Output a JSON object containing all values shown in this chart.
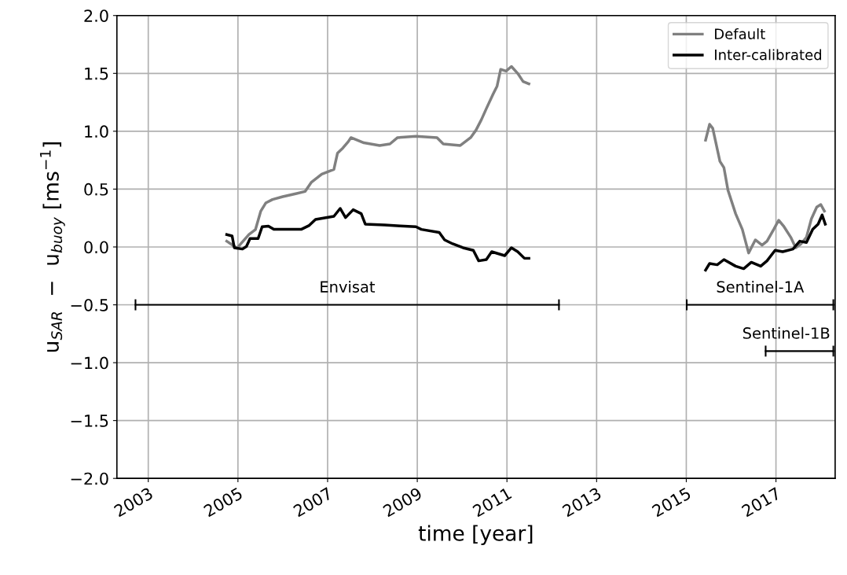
{
  "chart_data": {
    "type": "line",
    "xlabel": "time [year]",
    "ylabel": "u$_{SAR}$  −  u$_{buoy}$ [ms$^{−1}$]",
    "xlim": [
      2002.3,
      2018.32
    ],
    "xticks": [
      2003,
      2005,
      2007,
      2009,
      2011,
      2013,
      2015,
      2017
    ],
    "ylim": [
      -2.0,
      2.0
    ],
    "yticks": [
      {
        "value": -2.0,
        "label": "−2.0"
      },
      {
        "value": -1.5,
        "label": "−1.5"
      },
      {
        "value": -1.0,
        "label": "−1.0"
      },
      {
        "value": -0.5,
        "label": "−0.5"
      },
      {
        "value": 0.0,
        "label": "0.0"
      },
      {
        "value": 0.5,
        "label": "0.5"
      },
      {
        "value": 1.0,
        "label": "1.0"
      },
      {
        "value": 1.5,
        "label": "1.5"
      },
      {
        "value": 2.0,
        "label": "2.0"
      }
    ],
    "grid": true,
    "legend": "top right",
    "series": [
      {
        "name": "Default",
        "color": "#808080",
        "x": [
          2004.75,
          2004.98,
          2005.245,
          2005.39,
          2005.51,
          2005.62,
          2005.77,
          2006.0,
          2006.29,
          2006.5,
          2006.64,
          2006.87,
          2007.14,
          2007.22,
          2007.34,
          2007.46,
          2007.52,
          2007.81,
          2008.16,
          2008.39,
          2008.56,
          2008.97,
          2009.44,
          2009.58,
          2009.96,
          2010.19,
          2010.31,
          2010.43,
          2010.54,
          2010.69,
          2010.78,
          2010.86,
          2010.98,
          2011.1,
          2011.24,
          2011.36,
          2011.49,
          2013.0,
          2015.43,
          2015.52,
          2015.59,
          2015.75,
          2015.84,
          2015.93,
          2016.1,
          2016.25,
          2016.39,
          2016.54,
          2016.69,
          2016.8,
          2016.95,
          2017.06,
          2017.18,
          2017.33,
          2017.44,
          2017.56,
          2017.68,
          2017.79,
          2017.91,
          2018.0,
          2018.08
        ],
        "values": [
          0.05,
          -0.01,
          0.107,
          0.15,
          0.31,
          0.38,
          0.41,
          0.435,
          0.46,
          0.48,
          0.56,
          0.63,
          0.67,
          0.81,
          0.855,
          0.91,
          0.945,
          0.9,
          0.877,
          0.89,
          0.945,
          0.957,
          0.945,
          0.89,
          0.877,
          0.945,
          1.01,
          1.1,
          1.195,
          1.32,
          1.39,
          1.535,
          1.52,
          1.56,
          1.5,
          1.43,
          1.41,
          null,
          0.923,
          1.06,
          1.025,
          0.74,
          0.685,
          0.49,
          0.288,
          0.152,
          -0.052,
          0.061,
          0.016,
          0.05,
          0.152,
          0.231,
          0.175,
          0.084,
          -0.007,
          0.027,
          0.084,
          0.243,
          0.345,
          0.367,
          0.31
        ]
      },
      {
        "name": "Inter-calibrated",
        "color": "#000000",
        "x": [
          2004.75,
          2004.87,
          2004.92,
          2005.1,
          2005.19,
          2005.27,
          2005.45,
          2005.54,
          2005.68,
          2005.8,
          2006.06,
          2006.41,
          2006.59,
          2006.73,
          2007.14,
          2007.28,
          2007.4,
          2007.57,
          2007.75,
          2007.84,
          2008.27,
          2008.62,
          2008.97,
          2009.09,
          2009.49,
          2009.61,
          2009.79,
          2010.02,
          2010.25,
          2010.37,
          2010.54,
          2010.66,
          2010.95,
          2011.1,
          2011.24,
          2011.39,
          2011.49,
          2013.0,
          2015.43,
          2015.52,
          2015.69,
          2015.84,
          2016.1,
          2016.28,
          2016.45,
          2016.66,
          2016.8,
          2016.98,
          2017.15,
          2017.38,
          2017.53,
          2017.68,
          2017.82,
          2017.94,
          2018.03,
          2018.1
        ],
        "values": [
          0.107,
          0.095,
          -0.007,
          -0.018,
          0.005,
          0.073,
          0.073,
          0.175,
          0.18,
          0.152,
          0.152,
          0.152,
          0.186,
          0.238,
          0.265,
          0.333,
          0.254,
          0.322,
          0.288,
          0.197,
          0.19,
          0.181,
          0.175,
          0.152,
          0.125,
          0.061,
          0.027,
          -0.007,
          -0.029,
          -0.12,
          -0.109,
          -0.041,
          -0.075,
          -0.007,
          -0.041,
          -0.098,
          -0.098,
          null,
          -0.2,
          -0.143,
          -0.154,
          -0.109,
          -0.166,
          -0.188,
          -0.132,
          -0.166,
          -0.12,
          -0.029,
          -0.041,
          -0.018,
          0.05,
          0.039,
          0.152,
          0.197,
          0.277,
          0.197
        ]
      },
      {
        "name": "Envisat",
        "type": "step",
        "color": "#000000",
        "x": [
          2002.715,
          2012.16
        ],
        "values": [
          -0.5,
          -0.5
        ]
      },
      {
        "name": "Sentinel-1A",
        "type": "step",
        "color": "#000000",
        "x": [
          2015.01,
          2018.28
        ],
        "values": [
          -0.5,
          -0.5
        ]
      },
      {
        "name": "Sentinel-1B",
        "type": "step",
        "color": "#000000",
        "x": [
          2016.77,
          2018.28
        ],
        "values": [
          -0.9,
          -0.9
        ]
      }
    ]
  }
}
